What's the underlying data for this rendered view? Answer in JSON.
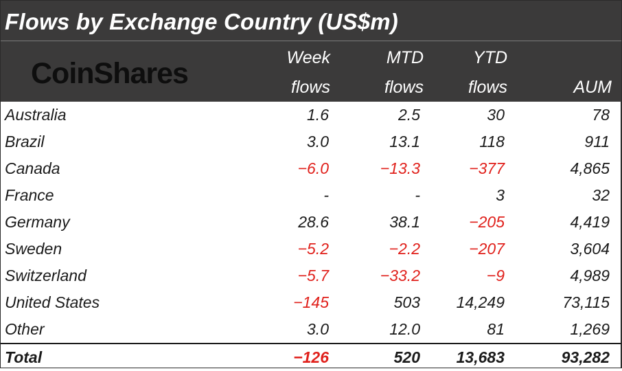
{
  "title": "Flows by Exchange Country (US$m)",
  "logo_text": "CoinShares",
  "columns": [
    {
      "line1": "Week",
      "line2": "flows"
    },
    {
      "line1": "MTD",
      "line2": "flows"
    },
    {
      "line1": "YTD",
      "line2": "flows"
    },
    {
      "line1": "",
      "line2": "AUM"
    }
  ],
  "colors": {
    "header_bg": "#3b3a3a",
    "negative": "#e0201b",
    "text": "#1a1a1a"
  },
  "chart_data": {
    "type": "table",
    "title": "Flows by Exchange Country (US$m)",
    "columns": [
      "Week flows",
      "MTD flows",
      "YTD flows",
      "AUM"
    ],
    "rows": [
      {
        "name": "Australia",
        "values": [
          "1.6",
          "2.5",
          "30",
          "78"
        ]
      },
      {
        "name": "Brazil",
        "values": [
          "3.0",
          "13.1",
          "118",
          "911"
        ]
      },
      {
        "name": "Canada",
        "values": [
          "-6.0",
          "-13.3",
          "-377",
          "4,865"
        ]
      },
      {
        "name": "France",
        "values": [
          "-",
          "-",
          "3",
          "32"
        ]
      },
      {
        "name": "Germany",
        "values": [
          "28.6",
          "38.1",
          "-205",
          "4,419"
        ]
      },
      {
        "name": "Sweden",
        "values": [
          "-5.2",
          "-2.2",
          "-207",
          "3,604"
        ]
      },
      {
        "name": "Switzerland",
        "values": [
          "-5.7",
          "-33.2",
          "-9",
          "4,989"
        ]
      },
      {
        "name": "United States",
        "values": [
          "-145",
          "503",
          "14,249",
          "73,115"
        ]
      },
      {
        "name": "Other",
        "values": [
          "3.0",
          "12.0",
          "81",
          "1,269"
        ]
      }
    ],
    "total": {
      "name": "Total",
      "values": [
        "-126",
        "520",
        "13,683",
        "93,282"
      ]
    }
  }
}
